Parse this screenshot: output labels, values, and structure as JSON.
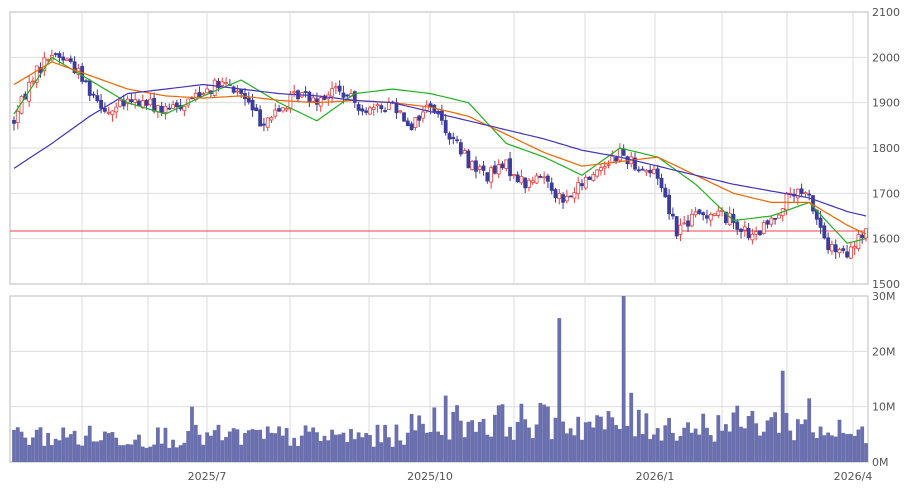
{
  "colors": {
    "up": "#e8413f",
    "down": "#3c3c9c",
    "ma_short": "#22b022",
    "ma_mid": "#ee6600",
    "ma_long": "#4433bb",
    "volume": "#6a6fae",
    "reference": "#ee4444",
    "grid": "#dddddd",
    "frame": "#bbbbbb"
  },
  "chart_data": [
    {
      "type": "candlestick",
      "title": "",
      "ylim": [
        1500,
        2100
      ],
      "y_ticks": [
        "1500",
        "1600",
        "1700",
        "1800",
        "1900",
        "2000",
        "2100"
      ],
      "x_tick_labels": [
        "2025/7",
        "2025/10",
        "2026/1",
        "2026/4"
      ],
      "reference_price": 1617,
      "series": [
        {
          "name": "",
          "color": "ma_short",
          "x": [
            0,
            10,
            20,
            30,
            40,
            50,
            60,
            70,
            80,
            90,
            100,
            110,
            120,
            130,
            140,
            150,
            160,
            170,
            180,
            190,
            200,
            210,
            220,
            225
          ],
          "values": [
            1875,
            2000,
            1950,
            1900,
            1875,
            1915,
            1950,
            1900,
            1860,
            1920,
            1930,
            1920,
            1900,
            1810,
            1780,
            1740,
            1800,
            1780,
            1720,
            1640,
            1650,
            1680,
            1590,
            1600
          ]
        },
        {
          "name": "",
          "color": "ma_mid",
          "x": [
            0,
            10,
            20,
            30,
            40,
            50,
            60,
            70,
            80,
            90,
            100,
            110,
            120,
            130,
            140,
            150,
            160,
            170,
            180,
            190,
            200,
            210,
            220,
            225
          ],
          "values": [
            1940,
            1990,
            1960,
            1930,
            1915,
            1910,
            1915,
            1905,
            1900,
            1905,
            1900,
            1890,
            1870,
            1830,
            1790,
            1760,
            1770,
            1780,
            1740,
            1700,
            1680,
            1680,
            1630,
            1610
          ]
        },
        {
          "name": "",
          "color": "ma_long",
          "x": [
            0,
            10,
            20,
            30,
            40,
            50,
            60,
            70,
            80,
            90,
            100,
            110,
            120,
            130,
            140,
            150,
            160,
            170,
            180,
            190,
            200,
            210,
            220,
            225
          ],
          "values": [
            1755,
            1810,
            1870,
            1920,
            1930,
            1940,
            1930,
            1920,
            1915,
            1905,
            1900,
            1880,
            1860,
            1840,
            1820,
            1795,
            1780,
            1760,
            1740,
            1720,
            1705,
            1690,
            1660,
            1650
          ]
        }
      ],
      "price_path": {
        "x": [
          0,
          5,
          10,
          15,
          20,
          25,
          30,
          35,
          40,
          45,
          50,
          55,
          60,
          65,
          70,
          75,
          80,
          85,
          90,
          95,
          100,
          105,
          110,
          115,
          120,
          125,
          130,
          135,
          140,
          145,
          150,
          155,
          160,
          165,
          170,
          175,
          180,
          185,
          190,
          195,
          200,
          205,
          210,
          215,
          220,
          225
        ],
        "values": [
          1860,
          1960,
          2010,
          1990,
          1930,
          1880,
          1900,
          1900,
          1880,
          1900,
          1930,
          1940,
          1920,
          1860,
          1880,
          1920,
          1910,
          1930,
          1900,
          1880,
          1900,
          1850,
          1900,
          1830,
          1770,
          1740,
          1760,
          1720,
          1740,
          1680,
          1720,
          1760,
          1790,
          1760,
          1740,
          1620,
          1650,
          1660,
          1640,
          1600,
          1640,
          1700,
          1690,
          1580,
          1560,
          1620
        ]
      }
    },
    {
      "type": "bar",
      "title": "",
      "ylim": [
        0,
        30
      ],
      "y_ticks": [
        "0M",
        "10M",
        "20M",
        "30M"
      ],
      "spikes": [
        {
          "x": 47,
          "value": 10
        },
        {
          "x": 114,
          "value": 12
        },
        {
          "x": 144,
          "value": 26
        },
        {
          "x": 161,
          "value": 30
        },
        {
          "x": 163,
          "value": 12.5
        },
        {
          "x": 203,
          "value": 16.5
        },
        {
          "x": 210,
          "value": 11.5
        }
      ],
      "baseline_profile": {
        "x": [
          0,
          40,
          100,
          110,
          140,
          160,
          180,
          200,
          225
        ],
        "values": [
          5,
          5,
          5,
          8,
          8,
          7,
          7,
          8,
          5
        ]
      }
    }
  ]
}
